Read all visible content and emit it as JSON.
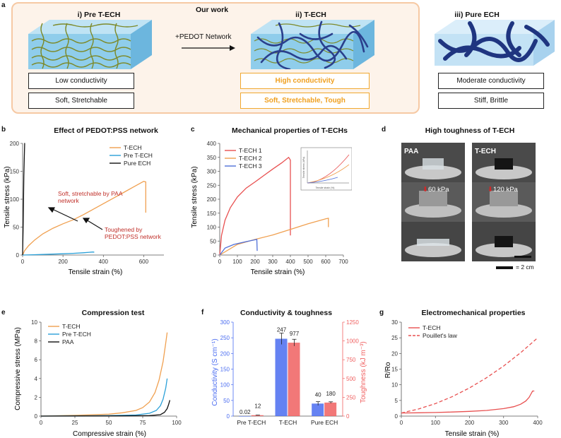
{
  "panel_a": {
    "label": "a",
    "our_work": "Our work",
    "pre_title": "i) Pre T-ECH",
    "tech_title": "ii) T-ECH",
    "pure_title": "iii) Pure ECH",
    "arrow_label": "+PEDOT Network",
    "pre_props": [
      "Low conductivity",
      "Soft, Stretchable"
    ],
    "tech_props": [
      "High conductivity",
      "Soft, Stretchable, Tough"
    ],
    "pure_props": [
      "Moderate conductivity",
      "Stiff, Brittle"
    ],
    "colors": {
      "frame": "#f6c9a4",
      "frame_bg": "#fdf3ea",
      "highlight": "#f0a020"
    }
  },
  "panel_b": {
    "label": "b",
    "title": "Effect of PEDOT:PSS network",
    "annotation1_line1": "Soft, stretchable by PAA",
    "annotation1_line2": "network",
    "annotation2_line1": "Toughened by",
    "annotation2_line2": "PEDOT:PSS network",
    "chart_data": {
      "type": "line",
      "xlabel": "Tensile strain (%)",
      "ylabel": "Tensile stress (kPa)",
      "xlim": [
        0,
        700
      ],
      "ylim": [
        0,
        200
      ],
      "xticks": [
        0,
        200,
        400,
        600
      ],
      "yticks": [
        0,
        50,
        100,
        150,
        200
      ],
      "series": [
        {
          "name": "T-ECH",
          "color": "#f0a050",
          "x": [
            0,
            10,
            30,
            60,
            100,
            150,
            200,
            250,
            300,
            350,
            400,
            450,
            500,
            550,
            600,
            610,
            610
          ],
          "y": [
            0,
            8,
            17,
            27,
            38,
            48,
            56,
            63,
            72,
            82,
            92,
            102,
            112,
            122,
            132,
            131,
            76
          ]
        },
        {
          "name": "Pre T-ECH",
          "color": "#2aa0d8",
          "x": [
            0,
            50,
            100,
            150,
            200,
            250,
            300,
            350,
            355
          ],
          "y": [
            0,
            0.5,
            1,
            1.6,
            2.3,
            3,
            4,
            5.5,
            5
          ]
        },
        {
          "name": "Pure ECH",
          "color": "#111111",
          "x": [
            0,
            3,
            6,
            10,
            12
          ],
          "y": [
            0,
            60,
            140,
            200,
            200
          ]
        }
      ]
    }
  },
  "panel_c": {
    "label": "c",
    "title": "Mechanical properties of T-ECHs",
    "inset_ylabel": "Tensile stress (kPa)",
    "inset_xlabel": "Tensile strain (%)",
    "chart_data": {
      "type": "line",
      "xlabel": "Tensile strain (%)",
      "ylabel": "Tensile stress (kPa)",
      "xlim": [
        0,
        700
      ],
      "ylim": [
        0,
        400
      ],
      "xticks": [
        0,
        100,
        200,
        300,
        400,
        500,
        600,
        700
      ],
      "yticks": [
        0,
        50,
        100,
        150,
        200,
        250,
        300,
        350,
        400
      ],
      "series": [
        {
          "name": "T-ECH 1",
          "color": "#e85050",
          "x": [
            0,
            10,
            30,
            60,
            100,
            150,
            200,
            250,
            300,
            350,
            390,
            395,
            400,
            400
          ],
          "y": [
            0,
            70,
            125,
            170,
            208,
            240,
            262,
            285,
            308,
            330,
            350,
            345,
            340,
            70
          ]
        },
        {
          "name": "T-ECH 2",
          "color": "#f0a050",
          "x": [
            0,
            100,
            200,
            300,
            400,
            500,
            600,
            615,
            615
          ],
          "y": [
            0,
            38,
            56,
            72,
            92,
            112,
            130,
            132,
            100
          ]
        },
        {
          "name": "T-ECH 3",
          "color": "#5070d8",
          "x": [
            0,
            30,
            80,
            150,
            210,
            212
          ],
          "y": [
            0,
            25,
            38,
            48,
            56,
            15
          ]
        }
      ]
    }
  },
  "panel_d": {
    "label": "d",
    "title": "High toughness of T-ECH",
    "left_label": "PAA",
    "right_label": "T-ECH",
    "left_pressure": "60 kPa",
    "right_pressure": "120 kPa",
    "scale_label": "= 2 cm"
  },
  "panel_e": {
    "label": "e",
    "title": "Compression test",
    "chart_data": {
      "type": "line",
      "xlabel": "Compressive strain (%)",
      "ylabel": "Compressive stress (MPa)",
      "xlim": [
        0,
        100
      ],
      "ylim": [
        0,
        10
      ],
      "xticks": [
        0,
        25,
        50,
        75,
        100
      ],
      "yticks": [
        0,
        2,
        4,
        6,
        8,
        10
      ],
      "series": [
        {
          "name": "T-ECH",
          "color": "#f0a050",
          "x": [
            0,
            25,
            50,
            60,
            70,
            75,
            80,
            84,
            87,
            90,
            92,
            93
          ],
          "y": [
            0,
            0.08,
            0.2,
            0.35,
            0.6,
            0.9,
            1.5,
            2.5,
            3.8,
            5.8,
            7.8,
            8.9
          ]
        },
        {
          "name": "Pre T-ECH",
          "color": "#2aa0d8",
          "x": [
            0,
            50,
            70,
            80,
            85,
            88,
            90,
            92,
            93
          ],
          "y": [
            0,
            0.05,
            0.12,
            0.3,
            0.6,
            1.1,
            1.8,
            3.0,
            4.0
          ]
        },
        {
          "name": "PAA",
          "color": "#111111",
          "x": [
            0,
            60,
            80,
            88,
            91,
            93,
            94,
            95
          ],
          "y": [
            0,
            0.02,
            0.05,
            0.15,
            0.4,
            0.8,
            1.2,
            1.7
          ]
        }
      ]
    }
  },
  "panel_f": {
    "label": "f",
    "title": "Conductivity & toughness",
    "chart_data": {
      "type": "bar",
      "categories": [
        "Pre T-ECH",
        "T-ECH",
        "Pure ECH"
      ],
      "ylabel": "Conductivity (S cm⁻¹)",
      "y2label": "Toughness (kJ m⁻³)",
      "ylim": [
        0,
        300
      ],
      "y2lim": [
        0,
        1250
      ],
      "yticks": [
        0,
        50,
        100,
        150,
        200,
        250,
        300
      ],
      "y2ticks": [
        0,
        250,
        500,
        750,
        1000,
        1250
      ],
      "series": [
        {
          "name": "Conductivity",
          "axis": "left",
          "color": "#4a6cf0",
          "values": [
            0.02,
            247,
            40
          ],
          "labels": [
            "0.02",
            "247",
            "40"
          ],
          "errors": [
            0,
            18,
            6
          ]
        },
        {
          "name": "Toughness",
          "axis": "right",
          "color": "#f06060",
          "values": [
            12,
            977,
            180
          ],
          "labels": [
            "12",
            "977",
            "180"
          ],
          "errors": [
            2,
            45,
            10
          ]
        }
      ]
    }
  },
  "panel_g": {
    "label": "g",
    "title": "Electromechanical properties",
    "chart_data": {
      "type": "line",
      "xlabel": "Tensile strain (%)",
      "ylabel": "R/Ro",
      "xlim": [
        0,
        400
      ],
      "ylim": [
        0,
        30
      ],
      "xticks": [
        0,
        100,
        200,
        300,
        400
      ],
      "yticks": [
        0,
        5,
        10,
        15,
        20,
        25,
        30
      ],
      "series": [
        {
          "name": "T-ECH",
          "style": "solid",
          "color": "#e85050",
          "x": [
            0,
            50,
            100,
            150,
            200,
            250,
            300,
            330,
            350,
            365,
            375,
            380,
            385,
            390
          ],
          "y": [
            1,
            1.05,
            1.15,
            1.3,
            1.5,
            1.8,
            2.4,
            3.0,
            3.8,
            4.8,
            6.0,
            7.0,
            8.0,
            8.0
          ]
        },
        {
          "name": "Pouillet's law",
          "style": "dashed",
          "color": "#e85050",
          "x": [
            0,
            50,
            100,
            150,
            200,
            250,
            300,
            350,
            400
          ],
          "y": [
            1,
            2.25,
            4,
            6.25,
            9,
            12.25,
            16,
            20.25,
            25
          ]
        }
      ]
    }
  }
}
